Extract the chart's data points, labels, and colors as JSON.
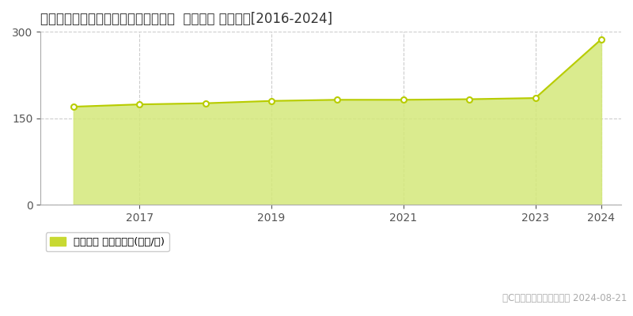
{
  "title": "東京都目黒区大岡山１丁目８６番１８  地価公示 地価推移[2016-2024]",
  "data_years": [
    2016,
    2017,
    2018,
    2019,
    2020,
    2021,
    2022,
    2023,
    2024
  ],
  "data_values": [
    170,
    174,
    176,
    180,
    182,
    182,
    183,
    185,
    287
  ],
  "ylim": [
    0,
    300
  ],
  "yticks": [
    0,
    150,
    300
  ],
  "xticks": [
    2017,
    2019,
    2021,
    2023,
    2024
  ],
  "line_color": "#b8cc00",
  "fill_color": "#d4e87a",
  "fill_alpha": 0.85,
  "marker_facecolor": "white",
  "marker_edgecolor": "#b8cc00",
  "bg_color": "#ffffff",
  "grid_color_h": "#cccccc",
  "grid_color_v": "#cccccc",
  "legend_label": "地価公示 平均坪単価(万円/坪)",
  "legend_marker_color": "#c8d932",
  "copyright_text": "（C）土地価格ドットコム 2024-08-21",
  "title_fontsize": 12,
  "tick_fontsize": 10,
  "legend_fontsize": 9.5,
  "copyright_fontsize": 8.5
}
